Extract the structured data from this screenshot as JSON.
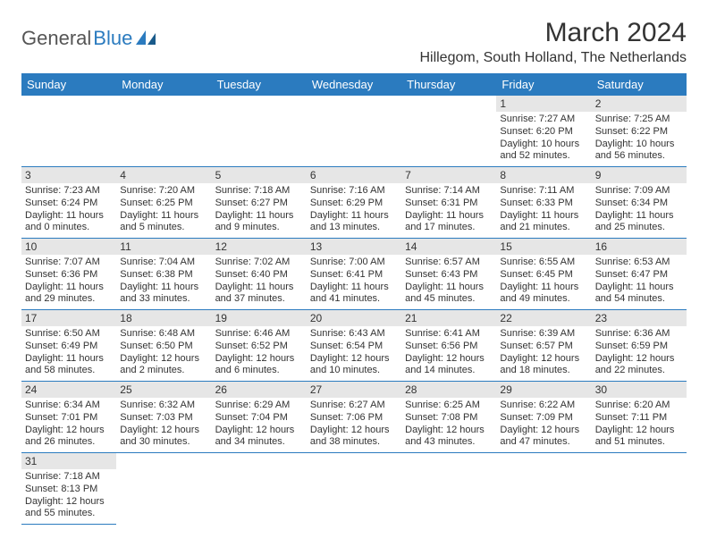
{
  "logo": {
    "general": "General",
    "blue": "Blue"
  },
  "title": "March 2024",
  "subtitle": "Hillegom, South Holland, The Netherlands",
  "colors": {
    "accent": "#2b7bbf",
    "dayband": "#e6e6e6",
    "text": "#333333",
    "background": "#ffffff"
  },
  "dayHeaders": [
    "Sunday",
    "Monday",
    "Tuesday",
    "Wednesday",
    "Thursday",
    "Friday",
    "Saturday"
  ],
  "weeks": [
    [
      null,
      null,
      null,
      null,
      null,
      {
        "num": "1",
        "sunrise": "Sunrise: 7:27 AM",
        "sunset": "Sunset: 6:20 PM",
        "daylight": "Daylight: 10 hours and 52 minutes."
      },
      {
        "num": "2",
        "sunrise": "Sunrise: 7:25 AM",
        "sunset": "Sunset: 6:22 PM",
        "daylight": "Daylight: 10 hours and 56 minutes."
      }
    ],
    [
      {
        "num": "3",
        "sunrise": "Sunrise: 7:23 AM",
        "sunset": "Sunset: 6:24 PM",
        "daylight": "Daylight: 11 hours and 0 minutes."
      },
      {
        "num": "4",
        "sunrise": "Sunrise: 7:20 AM",
        "sunset": "Sunset: 6:25 PM",
        "daylight": "Daylight: 11 hours and 5 minutes."
      },
      {
        "num": "5",
        "sunrise": "Sunrise: 7:18 AM",
        "sunset": "Sunset: 6:27 PM",
        "daylight": "Daylight: 11 hours and 9 minutes."
      },
      {
        "num": "6",
        "sunrise": "Sunrise: 7:16 AM",
        "sunset": "Sunset: 6:29 PM",
        "daylight": "Daylight: 11 hours and 13 minutes."
      },
      {
        "num": "7",
        "sunrise": "Sunrise: 7:14 AM",
        "sunset": "Sunset: 6:31 PM",
        "daylight": "Daylight: 11 hours and 17 minutes."
      },
      {
        "num": "8",
        "sunrise": "Sunrise: 7:11 AM",
        "sunset": "Sunset: 6:33 PM",
        "daylight": "Daylight: 11 hours and 21 minutes."
      },
      {
        "num": "9",
        "sunrise": "Sunrise: 7:09 AM",
        "sunset": "Sunset: 6:34 PM",
        "daylight": "Daylight: 11 hours and 25 minutes."
      }
    ],
    [
      {
        "num": "10",
        "sunrise": "Sunrise: 7:07 AM",
        "sunset": "Sunset: 6:36 PM",
        "daylight": "Daylight: 11 hours and 29 minutes."
      },
      {
        "num": "11",
        "sunrise": "Sunrise: 7:04 AM",
        "sunset": "Sunset: 6:38 PM",
        "daylight": "Daylight: 11 hours and 33 minutes."
      },
      {
        "num": "12",
        "sunrise": "Sunrise: 7:02 AM",
        "sunset": "Sunset: 6:40 PM",
        "daylight": "Daylight: 11 hours and 37 minutes."
      },
      {
        "num": "13",
        "sunrise": "Sunrise: 7:00 AM",
        "sunset": "Sunset: 6:41 PM",
        "daylight": "Daylight: 11 hours and 41 minutes."
      },
      {
        "num": "14",
        "sunrise": "Sunrise: 6:57 AM",
        "sunset": "Sunset: 6:43 PM",
        "daylight": "Daylight: 11 hours and 45 minutes."
      },
      {
        "num": "15",
        "sunrise": "Sunrise: 6:55 AM",
        "sunset": "Sunset: 6:45 PM",
        "daylight": "Daylight: 11 hours and 49 minutes."
      },
      {
        "num": "16",
        "sunrise": "Sunrise: 6:53 AM",
        "sunset": "Sunset: 6:47 PM",
        "daylight": "Daylight: 11 hours and 54 minutes."
      }
    ],
    [
      {
        "num": "17",
        "sunrise": "Sunrise: 6:50 AM",
        "sunset": "Sunset: 6:49 PM",
        "daylight": "Daylight: 11 hours and 58 minutes."
      },
      {
        "num": "18",
        "sunrise": "Sunrise: 6:48 AM",
        "sunset": "Sunset: 6:50 PM",
        "daylight": "Daylight: 12 hours and 2 minutes."
      },
      {
        "num": "19",
        "sunrise": "Sunrise: 6:46 AM",
        "sunset": "Sunset: 6:52 PM",
        "daylight": "Daylight: 12 hours and 6 minutes."
      },
      {
        "num": "20",
        "sunrise": "Sunrise: 6:43 AM",
        "sunset": "Sunset: 6:54 PM",
        "daylight": "Daylight: 12 hours and 10 minutes."
      },
      {
        "num": "21",
        "sunrise": "Sunrise: 6:41 AM",
        "sunset": "Sunset: 6:56 PM",
        "daylight": "Daylight: 12 hours and 14 minutes."
      },
      {
        "num": "22",
        "sunrise": "Sunrise: 6:39 AM",
        "sunset": "Sunset: 6:57 PM",
        "daylight": "Daylight: 12 hours and 18 minutes."
      },
      {
        "num": "23",
        "sunrise": "Sunrise: 6:36 AM",
        "sunset": "Sunset: 6:59 PM",
        "daylight": "Daylight: 12 hours and 22 minutes."
      }
    ],
    [
      {
        "num": "24",
        "sunrise": "Sunrise: 6:34 AM",
        "sunset": "Sunset: 7:01 PM",
        "daylight": "Daylight: 12 hours and 26 minutes."
      },
      {
        "num": "25",
        "sunrise": "Sunrise: 6:32 AM",
        "sunset": "Sunset: 7:03 PM",
        "daylight": "Daylight: 12 hours and 30 minutes."
      },
      {
        "num": "26",
        "sunrise": "Sunrise: 6:29 AM",
        "sunset": "Sunset: 7:04 PM",
        "daylight": "Daylight: 12 hours and 34 minutes."
      },
      {
        "num": "27",
        "sunrise": "Sunrise: 6:27 AM",
        "sunset": "Sunset: 7:06 PM",
        "daylight": "Daylight: 12 hours and 38 minutes."
      },
      {
        "num": "28",
        "sunrise": "Sunrise: 6:25 AM",
        "sunset": "Sunset: 7:08 PM",
        "daylight": "Daylight: 12 hours and 43 minutes."
      },
      {
        "num": "29",
        "sunrise": "Sunrise: 6:22 AM",
        "sunset": "Sunset: 7:09 PM",
        "daylight": "Daylight: 12 hours and 47 minutes."
      },
      {
        "num": "30",
        "sunrise": "Sunrise: 6:20 AM",
        "sunset": "Sunset: 7:11 PM",
        "daylight": "Daylight: 12 hours and 51 minutes."
      }
    ],
    [
      {
        "num": "31",
        "sunrise": "Sunrise: 7:18 AM",
        "sunset": "Sunset: 8:13 PM",
        "daylight": "Daylight: 12 hours and 55 minutes."
      },
      null,
      null,
      null,
      null,
      null,
      null
    ]
  ]
}
